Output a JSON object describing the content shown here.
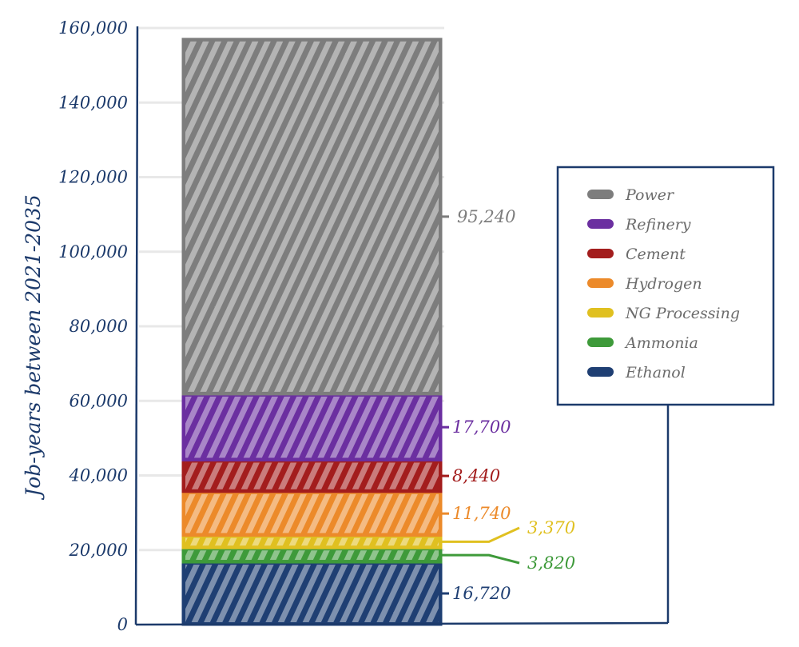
{
  "chart_data": {
    "type": "bar",
    "stacked": true,
    "ylabel": "Job-years between 2021-2035",
    "xlabel": "",
    "ylim": [
      0,
      160000
    ],
    "yticks": [
      0,
      20000,
      40000,
      60000,
      80000,
      100000,
      120000,
      140000,
      160000
    ],
    "ytick_labels": [
      "0",
      "20,000",
      "40,000",
      "60,000",
      "80,000",
      "100,000",
      "120,000",
      "140,000",
      "160,000"
    ],
    "grid": true,
    "legend_position": "right",
    "series": [
      {
        "name": "Ethanol",
        "value": 16720,
        "label": "16,720",
        "color": "#1f3f73"
      },
      {
        "name": "Ammonia",
        "value": 3820,
        "label": "3,820",
        "color": "#3e9a3a"
      },
      {
        "name": "NG Processing",
        "value": 3370,
        "label": "3,370",
        "color": "#e0c020"
      },
      {
        "name": "Hydrogen",
        "value": 11740,
        "label": "11,740",
        "color": "#ec8a2a"
      },
      {
        "name": "Cement",
        "value": 8440,
        "label": "8,440",
        "color": "#a31d1d"
      },
      {
        "name": "Refinery",
        "value": 17700,
        "label": "17,700",
        "color": "#6b2fa0"
      },
      {
        "name": "Power",
        "value": 95240,
        "label": "95,240",
        "color": "#7d7d7d"
      }
    ],
    "legend_order": [
      "Power",
      "Refinery",
      "Cement",
      "Hydrogen",
      "NG Processing",
      "Ammonia",
      "Ethanol"
    ]
  },
  "colors": {
    "axis": "#1c3a6b",
    "grid": "#e8e8e8"
  }
}
